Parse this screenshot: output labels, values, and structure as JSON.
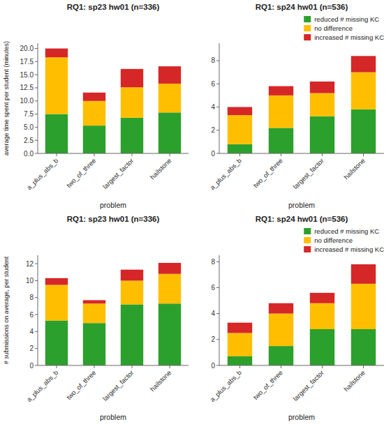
{
  "chart_data": [
    {
      "type": "bar",
      "stacked": true,
      "title": "RQ1: sp23 hw01 (n=336)",
      "xlabel": "problem",
      "ylabel": "average time spent per student (minutes)",
      "categories": [
        "a_plus_abs_b",
        "two_of_three",
        "largest_factor",
        "hailstone"
      ],
      "series": [
        {
          "color": "#2ca02c",
          "values": [
            7.5,
            5.3,
            6.8,
            7.8
          ]
        },
        {
          "color": "#ffbf00",
          "values": [
            10.8,
            4.7,
            5.8,
            5.5
          ]
        },
        {
          "color": "#d62728",
          "values": [
            1.7,
            1.6,
            3.5,
            3.3
          ]
        }
      ],
      "ylim": [
        0,
        21
      ],
      "yticks": [
        {
          "value": 0,
          "label": "0.0"
        },
        2.5,
        {
          "value": 5,
          "label": "5.0"
        },
        7.5,
        {
          "value": 10,
          "label": "10.0"
        },
        12.5,
        {
          "value": 15,
          "label": "15.0"
        },
        17.5,
        {
          "value": 20,
          "label": "20.0"
        }
      ],
      "grid": false
    },
    {
      "type": "bar",
      "stacked": true,
      "title": "RQ1: sp24 hw01 (n=536)",
      "xlabel": "problem",
      "categories": [
        "a_plus_abs_b",
        "two_of_three",
        "largest_factor",
        "hailstone"
      ],
      "series": [
        {
          "name": "reduced # missing KC",
          "color": "#2ca02c",
          "values": [
            0.8,
            2.2,
            3.2,
            3.8
          ]
        },
        {
          "name": "no difference",
          "color": "#ffbf00",
          "values": [
            2.5,
            2.8,
            2.0,
            3.2
          ]
        },
        {
          "name": "increased # missing KC",
          "color": "#d62728",
          "values": [
            0.7,
            0.8,
            1.0,
            1.4
          ]
        }
      ],
      "ylim": [
        0,
        9.5
      ],
      "yticks": [
        0,
        2,
        4,
        6,
        8
      ],
      "grid": false,
      "legend": "upper right"
    },
    {
      "type": "bar",
      "stacked": true,
      "title": "RQ1: sp23 hw01 (n=336)",
      "xlabel": "problem",
      "ylabel": "# submissions on average, per student",
      "categories": [
        "a_plus_abs_b",
        "two_of_three",
        "largest_factor",
        "hailstone"
      ],
      "series": [
        {
          "color": "#2ca02c",
          "values": [
            5.3,
            5.0,
            7.2,
            7.3
          ]
        },
        {
          "color": "#ffbf00",
          "values": [
            4.2,
            2.3,
            2.8,
            3.5
          ]
        },
        {
          "color": "#d62728",
          "values": [
            0.8,
            0.4,
            1.3,
            1.3
          ]
        }
      ],
      "ylim": [
        0,
        13
      ],
      "yticks": [
        0,
        2,
        4,
        6,
        8,
        10,
        12
      ],
      "grid": false
    },
    {
      "type": "bar",
      "stacked": true,
      "title": "RQ1: sp24 hw01 (n=536)",
      "xlabel": "problem",
      "categories": [
        "a_plus_abs_b",
        "two_of_three",
        "largest_factor",
        "hailstone"
      ],
      "series": [
        {
          "name": "reduced # missing KC",
          "color": "#2ca02c",
          "values": [
            0.7,
            1.5,
            2.8,
            2.8
          ]
        },
        {
          "name": "no difference",
          "color": "#ffbf00",
          "values": [
            1.8,
            2.5,
            2.0,
            3.5
          ]
        },
        {
          "name": "increased # missing KC",
          "color": "#d62728",
          "values": [
            0.8,
            0.8,
            0.8,
            1.5
          ]
        }
      ],
      "ylim": [
        0,
        8.5
      ],
      "yticks": [
        0,
        2,
        4,
        6,
        8
      ],
      "grid": false,
      "legend": "upper right"
    }
  ]
}
